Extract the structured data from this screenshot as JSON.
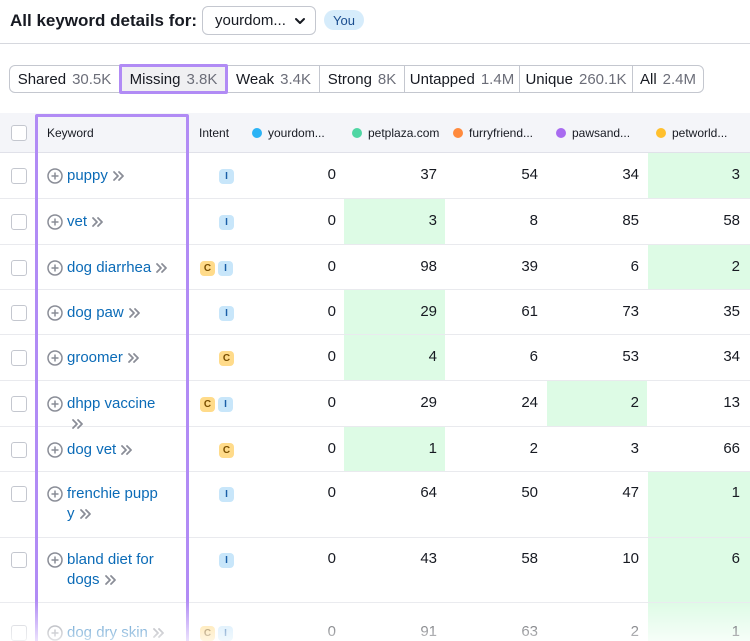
{
  "header": {
    "title": "All keyword details for:",
    "domain_value": "yourdom...",
    "you_badge": "You"
  },
  "tabs": [
    {
      "label": "Shared",
      "count": "30.5K",
      "active": false
    },
    {
      "label": "Missing",
      "count": "3.8K",
      "active": true
    },
    {
      "label": "Weak",
      "count": "3.4K",
      "active": false
    },
    {
      "label": "Strong",
      "count": "8K",
      "active": false
    },
    {
      "label": "Untapped",
      "count": "1.4M",
      "active": false
    },
    {
      "label": "Unique",
      "count": "260.1K",
      "active": false
    },
    {
      "label": "All",
      "count": "2.4M",
      "active": false
    }
  ],
  "columns": {
    "keyword": "Keyword",
    "intent": "Intent",
    "domains": [
      {
        "label": "yourdom...",
        "color": "#2BB3F5"
      },
      {
        "label": "petplaza.com",
        "color": "#4FD6A3"
      },
      {
        "label": "furryfriend...",
        "color": "#FF8A3D"
      },
      {
        "label": "pawsand...",
        "color": "#A86BF0"
      },
      {
        "label": "petworld...",
        "color": "#FFC02E"
      }
    ]
  },
  "rows": [
    {
      "keyword_lines": [
        "puppy"
      ],
      "intent": [
        "I"
      ],
      "values": [
        "0",
        "37",
        "54",
        "34",
        "3"
      ],
      "highlight": [
        false,
        false,
        false,
        false,
        true
      ]
    },
    {
      "keyword_lines": [
        "vet"
      ],
      "intent": [
        "I"
      ],
      "values": [
        "0",
        "3",
        "8",
        "85",
        "58"
      ],
      "highlight": [
        false,
        true,
        false,
        false,
        false
      ]
    },
    {
      "keyword_lines": [
        "dog diarrhea"
      ],
      "intent": [
        "C",
        "I"
      ],
      "values": [
        "0",
        "98",
        "39",
        "6",
        "2"
      ],
      "highlight": [
        false,
        false,
        false,
        false,
        true
      ]
    },
    {
      "keyword_lines": [
        "dog paw"
      ],
      "intent": [
        "I"
      ],
      "values": [
        "0",
        "29",
        "61",
        "73",
        "35"
      ],
      "highlight": [
        false,
        true,
        false,
        false,
        false
      ]
    },
    {
      "keyword_lines": [
        "groomer"
      ],
      "intent": [
        "C"
      ],
      "values": [
        "0",
        "4",
        "6",
        "53",
        "34"
      ],
      "highlight": [
        false,
        true,
        false,
        false,
        false
      ]
    },
    {
      "keyword_lines": [
        "dhpp vaccine"
      ],
      "intent": [
        "C",
        "I"
      ],
      "values": [
        "0",
        "29",
        "24",
        "2",
        "13"
      ],
      "highlight": [
        false,
        false,
        false,
        true,
        false
      ]
    },
    {
      "keyword_lines": [
        "dog vet"
      ],
      "intent": [
        "C"
      ],
      "values": [
        "0",
        "1",
        "2",
        "3",
        "66"
      ],
      "highlight": [
        false,
        true,
        false,
        false,
        false
      ]
    },
    {
      "keyword_lines": [
        "frenchie pupp",
        "y"
      ],
      "intent": [
        "I"
      ],
      "values": [
        "0",
        "64",
        "50",
        "47",
        "1"
      ],
      "highlight": [
        false,
        false,
        false,
        false,
        true
      ]
    },
    {
      "keyword_lines": [
        "bland diet for",
        "dogs"
      ],
      "intent": [
        "I"
      ],
      "values": [
        "0",
        "43",
        "58",
        "10",
        "6"
      ],
      "highlight": [
        false,
        false,
        false,
        false,
        true
      ]
    },
    {
      "keyword_lines": [
        "dog dry skin"
      ],
      "intent": [
        "C",
        "I"
      ],
      "values": [
        "0",
        "91",
        "63",
        "2",
        "1"
      ],
      "highlight": [
        false,
        false,
        false,
        false,
        true
      ]
    }
  ]
}
